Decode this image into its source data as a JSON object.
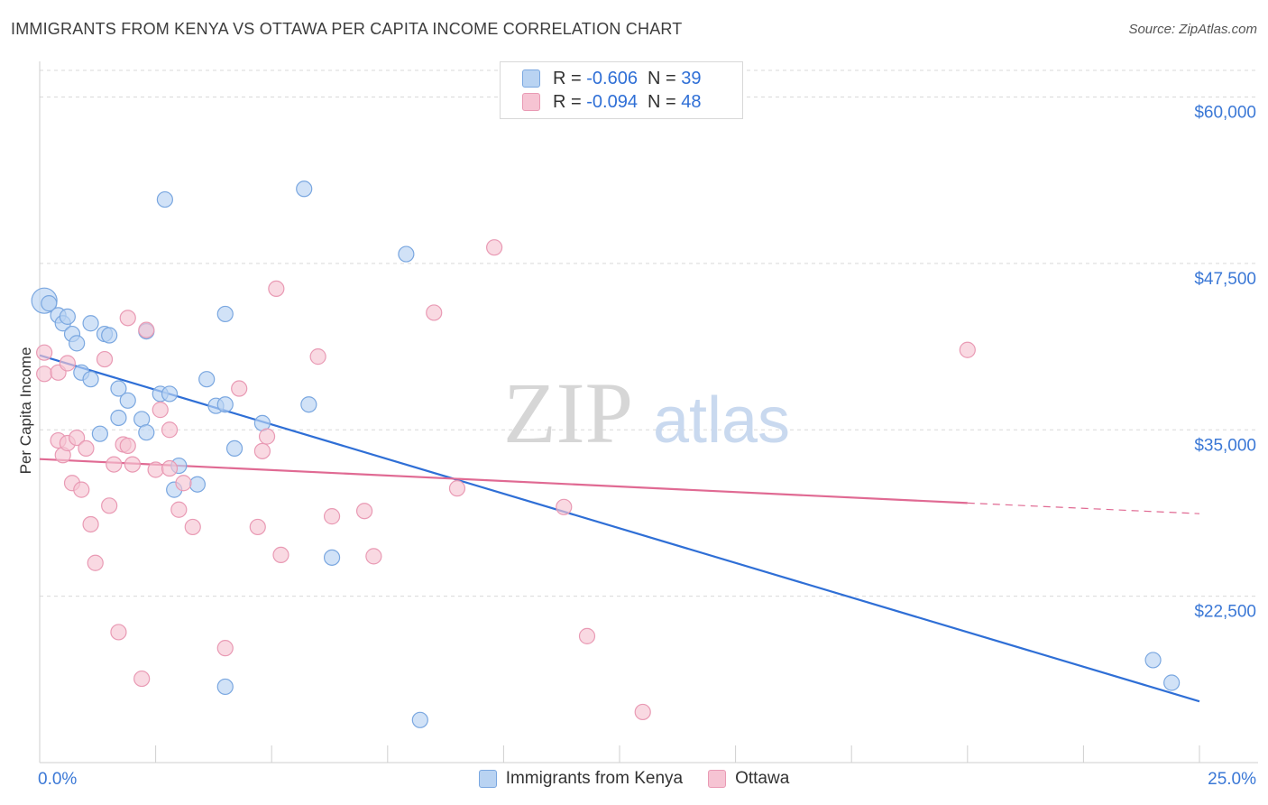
{
  "title": "IMMIGRANTS FROM KENYA VS OTTAWA PER CAPITA INCOME CORRELATION CHART",
  "source": "Source: ZipAtlas.com",
  "watermark": {
    "zip": "ZIP",
    "atlas": "atlas"
  },
  "legend": {
    "series1": {
      "r_label": "R = ",
      "r_value": "-0.606",
      "n_label": "N = ",
      "n_value": "39"
    },
    "series2": {
      "r_label": "R = ",
      "r_value": "-0.094",
      "n_label": "N = ",
      "n_value": "48"
    }
  },
  "bottom_legend": {
    "series1": "Immigrants from Kenya",
    "series2": "Ottawa"
  },
  "colors": {
    "blue_fill": "#b9d3f2",
    "blue_stroke": "#7aa7e0",
    "blue_line": "#2f6fd6",
    "pink_fill": "#f6c4d3",
    "pink_stroke": "#e99ab4",
    "pink_line": "#e06a93",
    "axis_text": "#3b78d6",
    "grid": "#d9d9d9"
  },
  "chart_data": {
    "type": "scatter",
    "title": "IMMIGRANTS FROM KENYA VS OTTAWA PER CAPITA INCOME CORRELATION CHART",
    "xlabel": "",
    "ylabel": "Per Capita Income",
    "xlim": [
      0,
      25
    ],
    "ylim": [
      10000,
      62000
    ],
    "x_tick_labels": [
      "0.0%",
      "25.0%"
    ],
    "y_ticks": [
      22500,
      35000,
      47500,
      60000
    ],
    "y_tick_labels": [
      "$22,500",
      "$35,000",
      "$47,500",
      "$60,000"
    ],
    "grid": true,
    "series": [
      {
        "name": "Immigrants from Kenya",
        "points": [
          [
            0.1,
            44700
          ],
          [
            0.2,
            44500
          ],
          [
            0.4,
            43600
          ],
          [
            0.5,
            43000
          ],
          [
            0.6,
            43500
          ],
          [
            0.7,
            42200
          ],
          [
            0.8,
            41500
          ],
          [
            0.9,
            39300
          ],
          [
            1.1,
            38800
          ],
          [
            1.1,
            43000
          ],
          [
            1.4,
            42200
          ],
          [
            1.5,
            42100
          ],
          [
            1.3,
            34700
          ],
          [
            1.7,
            38100
          ],
          [
            1.7,
            35900
          ],
          [
            1.9,
            37200
          ],
          [
            2.2,
            35800
          ],
          [
            2.3,
            34800
          ],
          [
            2.3,
            42400
          ],
          [
            2.6,
            37700
          ],
          [
            2.7,
            52300
          ],
          [
            2.8,
            37700
          ],
          [
            2.9,
            30500
          ],
          [
            3.0,
            32300
          ],
          [
            3.4,
            30900
          ],
          [
            3.6,
            38800
          ],
          [
            3.8,
            36800
          ],
          [
            4.0,
            36900
          ],
          [
            4.0,
            15700
          ],
          [
            4.0,
            43700
          ],
          [
            4.2,
            33600
          ],
          [
            4.8,
            35500
          ],
          [
            5.7,
            53100
          ],
          [
            5.8,
            36900
          ],
          [
            6.3,
            25400
          ],
          [
            7.9,
            48200
          ],
          [
            8.2,
            13200
          ],
          [
            24.0,
            17700
          ],
          [
            24.4,
            16000
          ]
        ]
      },
      {
        "name": "Ottawa",
        "points": [
          [
            0.1,
            40800
          ],
          [
            0.1,
            39200
          ],
          [
            0.4,
            34200
          ],
          [
            0.4,
            39300
          ],
          [
            0.5,
            33100
          ],
          [
            0.6,
            40000
          ],
          [
            0.6,
            34000
          ],
          [
            0.7,
            31000
          ],
          [
            0.8,
            34400
          ],
          [
            0.9,
            30500
          ],
          [
            1.0,
            33600
          ],
          [
            1.1,
            27900
          ],
          [
            1.2,
            25000
          ],
          [
            1.4,
            40300
          ],
          [
            1.5,
            29300
          ],
          [
            1.6,
            32400
          ],
          [
            1.7,
            19800
          ],
          [
            1.8,
            33900
          ],
          [
            1.9,
            43400
          ],
          [
            1.9,
            33800
          ],
          [
            2.0,
            32400
          ],
          [
            2.2,
            16300
          ],
          [
            2.3,
            42500
          ],
          [
            2.5,
            32000
          ],
          [
            2.6,
            36500
          ],
          [
            2.8,
            32100
          ],
          [
            2.8,
            35000
          ],
          [
            3.0,
            29000
          ],
          [
            3.1,
            31000
          ],
          [
            3.3,
            27700
          ],
          [
            4.0,
            18600
          ],
          [
            4.3,
            38100
          ],
          [
            4.7,
            27700
          ],
          [
            4.8,
            33400
          ],
          [
            4.9,
            34500
          ],
          [
            5.1,
            45600
          ],
          [
            5.2,
            25600
          ],
          [
            6.0,
            40500
          ],
          [
            6.3,
            28500
          ],
          [
            7.0,
            28900
          ],
          [
            7.2,
            25500
          ],
          [
            8.5,
            43800
          ],
          [
            9.0,
            30600
          ],
          [
            9.8,
            48700
          ],
          [
            11.3,
            29200
          ],
          [
            11.8,
            19500
          ],
          [
            13.0,
            13800
          ],
          [
            20.0,
            41000
          ]
        ]
      }
    ],
    "trend_lines": [
      {
        "name": "Immigrants from Kenya",
        "x": [
          0,
          25
        ],
        "y": [
          40600,
          14600
        ],
        "style": "solid"
      },
      {
        "name": "Ottawa",
        "x": [
          0,
          20
        ],
        "y": [
          32800,
          29500
        ],
        "style": "solid"
      },
      {
        "name": "Ottawa",
        "x": [
          20,
          25
        ],
        "y": [
          29500,
          28700
        ],
        "style": "dashed"
      }
    ]
  }
}
